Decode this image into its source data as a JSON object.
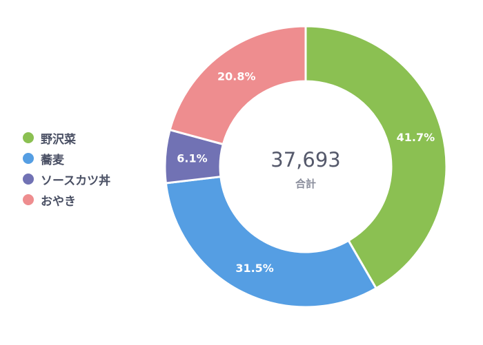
{
  "chart_data": {
    "type": "pie",
    "donut": true,
    "categories": [
      "野沢菜",
      "蕎麦",
      "ソースカツ丼",
      "おやき"
    ],
    "values": [
      41.7,
      31.5,
      6.1,
      20.8
    ],
    "labels": [
      "41.7%",
      "31.5%",
      "6.1%",
      "20.8%"
    ],
    "colors": [
      "#8bc052",
      "#559ee3",
      "#7172b4",
      "#ee8d8f"
    ],
    "total": "37,693",
    "total_label": "合計",
    "legend_position": "left",
    "start_angle": "top, clockwise"
  }
}
